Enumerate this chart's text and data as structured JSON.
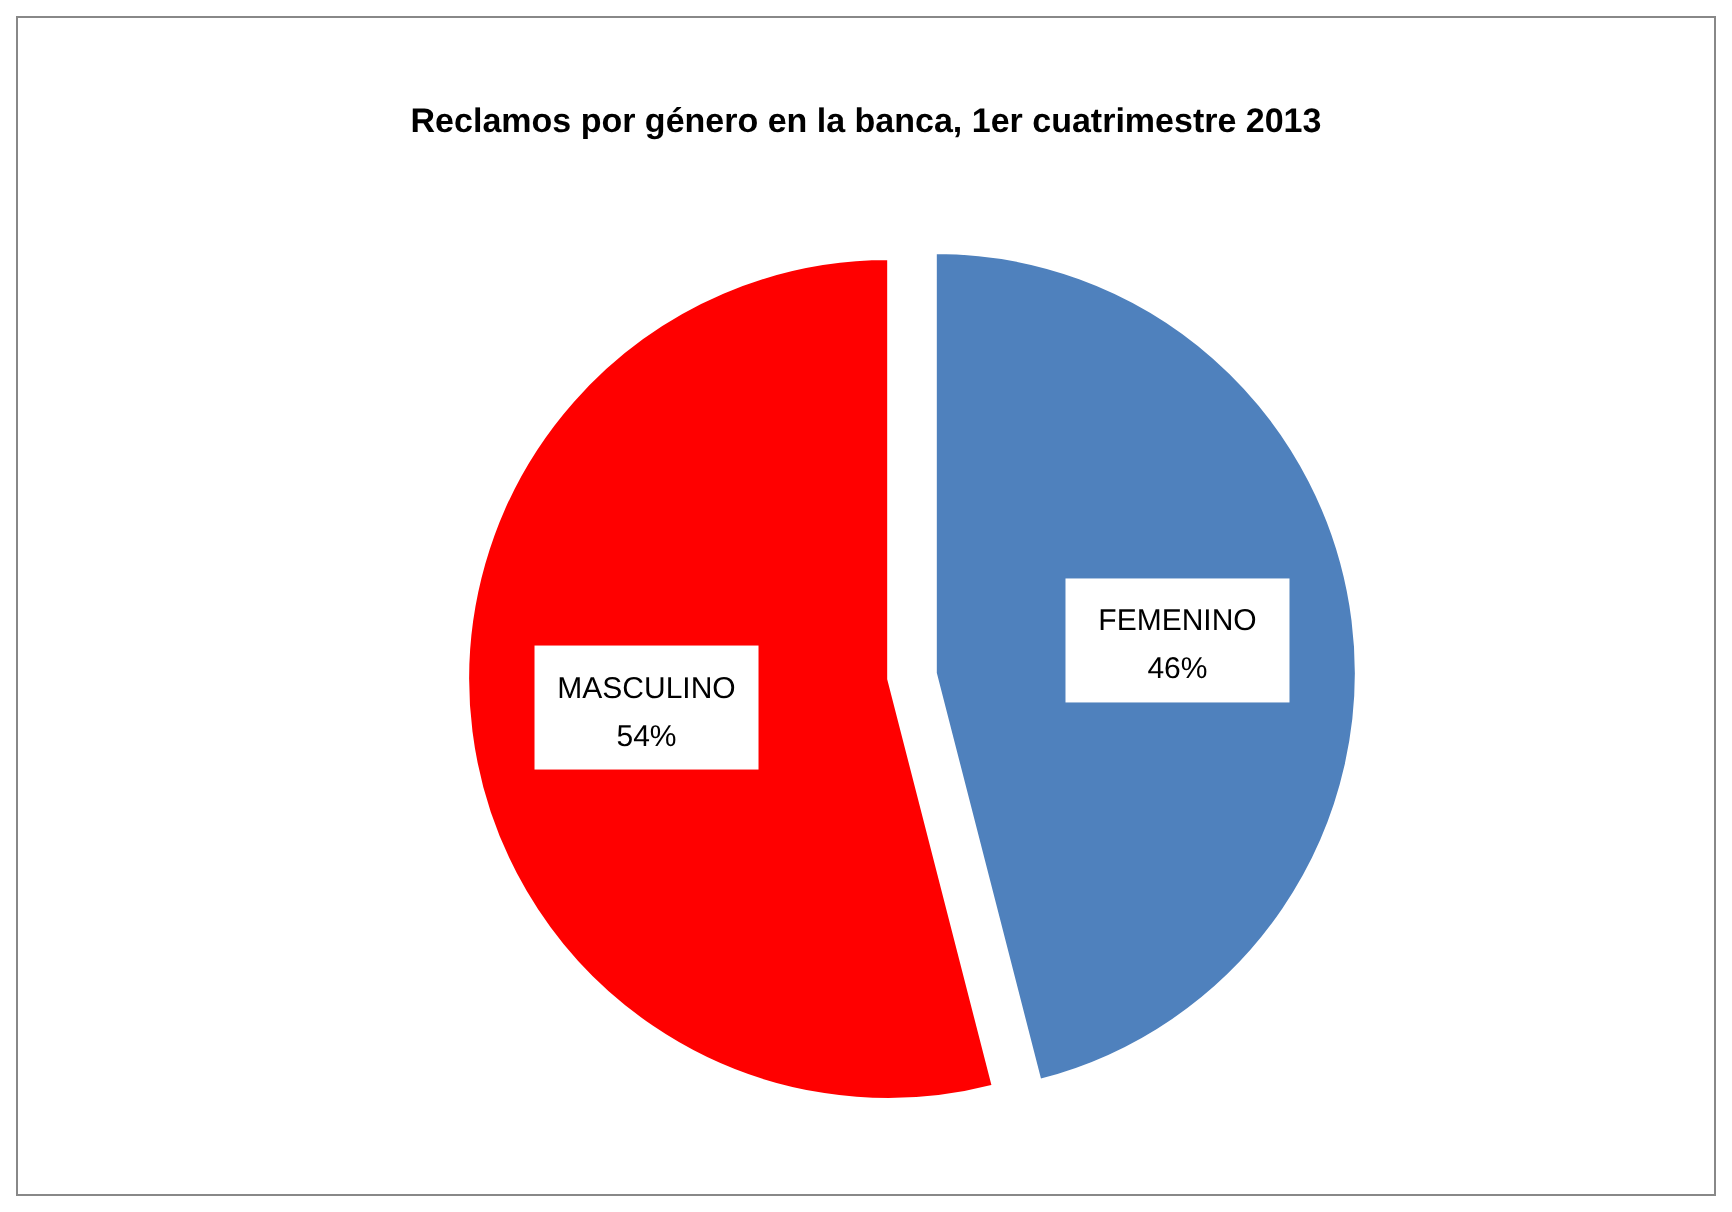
{
  "chart_data": {
    "type": "pie",
    "title": "Reclamos por género en la banca, 1er cuatrimestre 2013",
    "categories": [
      "FEMENINO",
      "MASCULINO"
    ],
    "values": [
      46,
      54
    ],
    "colors": [
      "#4f81bd",
      "#ff0000"
    ],
    "value_labels": [
      "46%",
      "54%"
    ]
  }
}
